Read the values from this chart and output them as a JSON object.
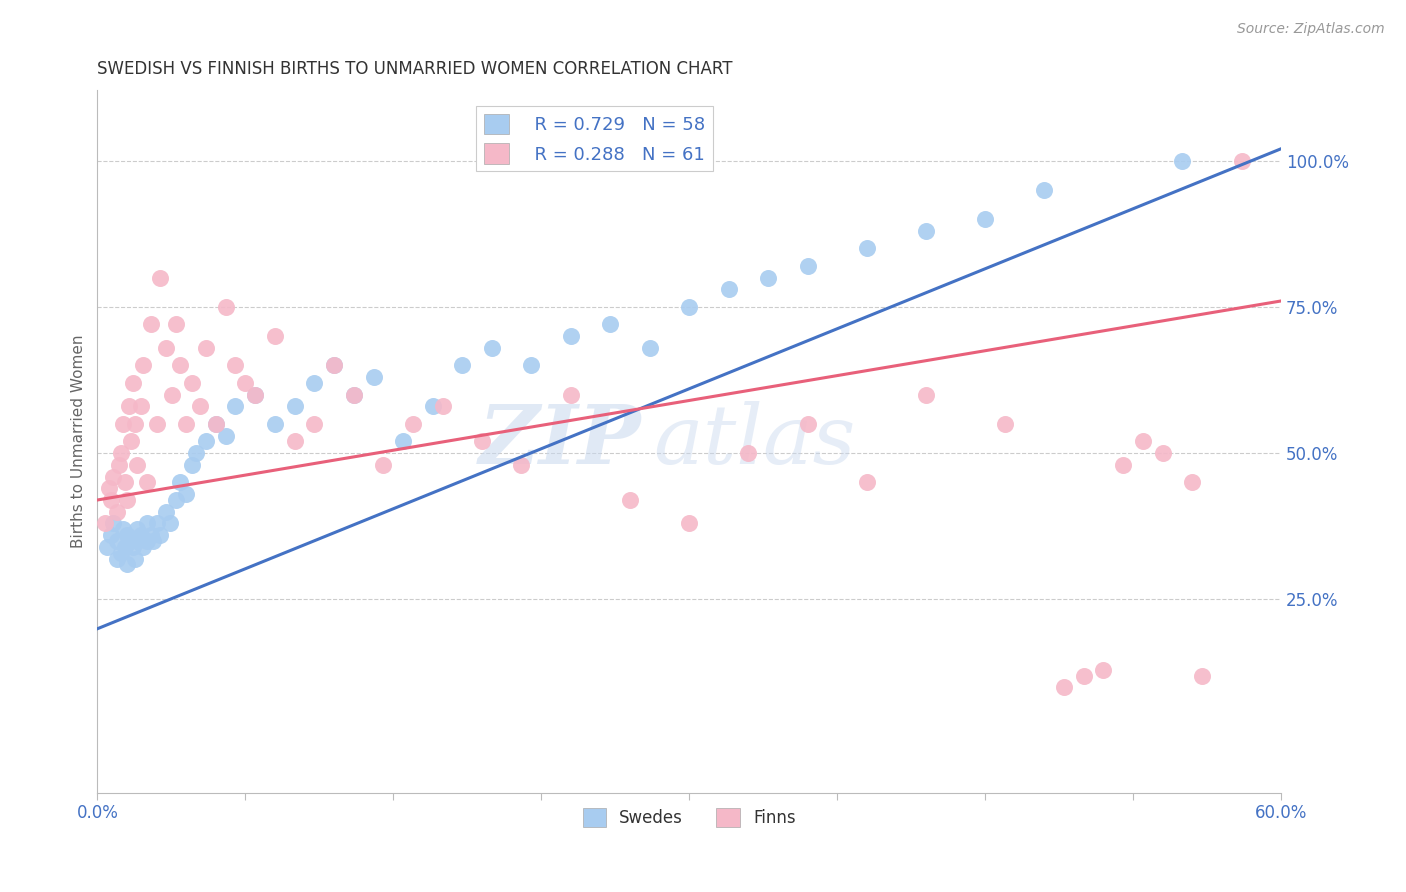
{
  "title": "SWEDISH VS FINNISH BIRTHS TO UNMARRIED WOMEN CORRELATION CHART",
  "source": "Source: ZipAtlas.com",
  "ylabel": "Births to Unmarried Women",
  "right_yticks": [
    "25.0%",
    "50.0%",
    "75.0%",
    "100.0%"
  ],
  "right_ytick_vals": [
    0.25,
    0.5,
    0.75,
    1.0
  ],
  "legend_blue_r": "R = 0.729",
  "legend_blue_n": "N = 58",
  "legend_pink_r": "R = 0.288",
  "legend_pink_n": "N = 61",
  "legend_label_blue": "Swedes",
  "legend_label_pink": "Finns",
  "blue_color": "#A8CCF0",
  "pink_color": "#F5B8C8",
  "blue_line_color": "#4472C4",
  "pink_line_color": "#E8607A",
  "watermark_zip": "ZIP",
  "watermark_atlas": "atlas",
  "background_color": "#FFFFFF",
  "xlim": [
    0.0,
    0.6
  ],
  "ylim": [
    -0.08,
    1.12
  ],
  "blue_line_x0": 0.0,
  "blue_line_y0": 0.2,
  "blue_line_x1": 0.6,
  "blue_line_y1": 1.02,
  "pink_line_x0": 0.0,
  "pink_line_y0": 0.42,
  "pink_line_x1": 0.6,
  "pink_line_y1": 0.76,
  "swedes_x": [
    0.005,
    0.007,
    0.008,
    0.01,
    0.01,
    0.012,
    0.013,
    0.014,
    0.015,
    0.015,
    0.016,
    0.018,
    0.019,
    0.02,
    0.02,
    0.022,
    0.023,
    0.025,
    0.025,
    0.027,
    0.028,
    0.03,
    0.032,
    0.035,
    0.037,
    0.04,
    0.042,
    0.045,
    0.048,
    0.05,
    0.055,
    0.06,
    0.065,
    0.07,
    0.08,
    0.09,
    0.1,
    0.11,
    0.12,
    0.13,
    0.14,
    0.155,
    0.17,
    0.185,
    0.2,
    0.22,
    0.24,
    0.26,
    0.28,
    0.3,
    0.32,
    0.34,
    0.36,
    0.39,
    0.42,
    0.45,
    0.48,
    0.55
  ],
  "swedes_y": [
    0.34,
    0.36,
    0.38,
    0.32,
    0.35,
    0.33,
    0.37,
    0.34,
    0.31,
    0.36,
    0.35,
    0.34,
    0.32,
    0.35,
    0.37,
    0.36,
    0.34,
    0.35,
    0.38,
    0.36,
    0.35,
    0.38,
    0.36,
    0.4,
    0.38,
    0.42,
    0.45,
    0.43,
    0.48,
    0.5,
    0.52,
    0.55,
    0.53,
    0.58,
    0.6,
    0.55,
    0.58,
    0.62,
    0.65,
    0.6,
    0.63,
    0.52,
    0.58,
    0.65,
    0.68,
    0.65,
    0.7,
    0.72,
    0.68,
    0.75,
    0.78,
    0.8,
    0.82,
    0.85,
    0.88,
    0.9,
    0.95,
    1.0
  ],
  "finns_x": [
    0.004,
    0.006,
    0.007,
    0.008,
    0.01,
    0.011,
    0.012,
    0.013,
    0.014,
    0.015,
    0.016,
    0.017,
    0.018,
    0.019,
    0.02,
    0.022,
    0.023,
    0.025,
    0.027,
    0.03,
    0.032,
    0.035,
    0.038,
    0.04,
    0.042,
    0.045,
    0.048,
    0.052,
    0.055,
    0.06,
    0.065,
    0.07,
    0.075,
    0.08,
    0.09,
    0.1,
    0.11,
    0.12,
    0.13,
    0.145,
    0.16,
    0.175,
    0.195,
    0.215,
    0.24,
    0.27,
    0.3,
    0.33,
    0.36,
    0.39,
    0.42,
    0.46,
    0.5,
    0.53,
    0.49,
    0.51,
    0.52,
    0.54,
    0.555,
    0.56,
    0.58
  ],
  "finns_y": [
    0.38,
    0.44,
    0.42,
    0.46,
    0.4,
    0.48,
    0.5,
    0.55,
    0.45,
    0.42,
    0.58,
    0.52,
    0.62,
    0.55,
    0.48,
    0.58,
    0.65,
    0.45,
    0.72,
    0.55,
    0.8,
    0.68,
    0.6,
    0.72,
    0.65,
    0.55,
    0.62,
    0.58,
    0.68,
    0.55,
    0.75,
    0.65,
    0.62,
    0.6,
    0.7,
    0.52,
    0.55,
    0.65,
    0.6,
    0.48,
    0.55,
    0.58,
    0.52,
    0.48,
    0.6,
    0.42,
    0.38,
    0.5,
    0.55,
    0.45,
    0.6,
    0.55,
    0.12,
    0.52,
    0.1,
    0.13,
    0.48,
    0.5,
    0.45,
    0.12,
    1.0
  ]
}
